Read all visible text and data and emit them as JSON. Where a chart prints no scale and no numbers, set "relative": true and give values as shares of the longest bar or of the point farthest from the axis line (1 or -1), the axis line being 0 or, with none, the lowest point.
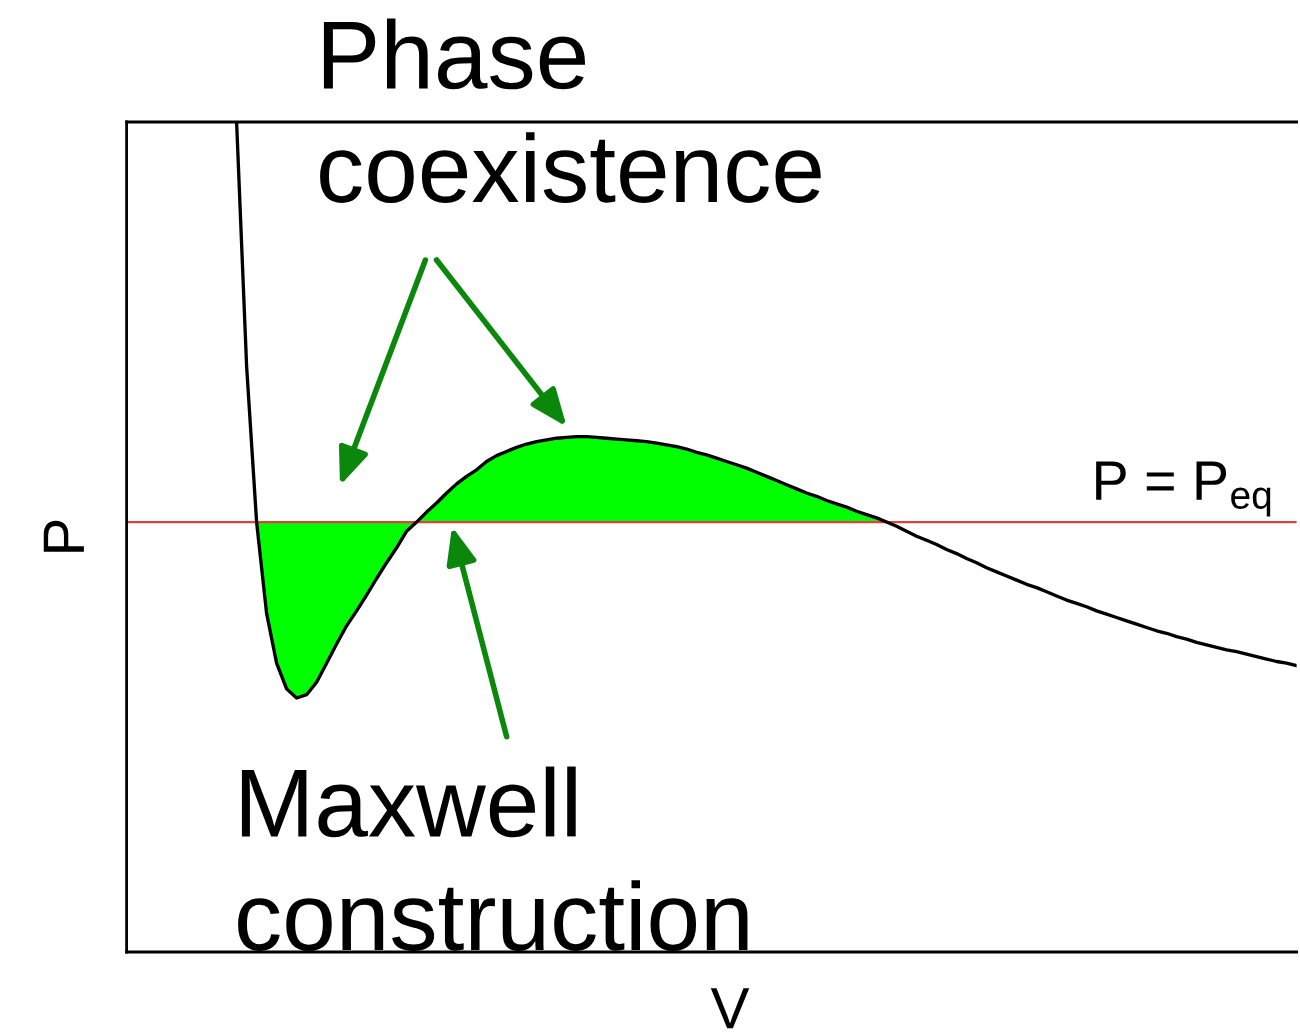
{
  "chart_data": {
    "type": "line",
    "xlabel": "V",
    "ylabel": "P",
    "relative": true,
    "categories": [
      null,
      null,
      null,
      null,
      null,
      null,
      null,
      null,
      null,
      null,
      null,
      null,
      null,
      null,
      null,
      null,
      null,
      null,
      null,
      null,
      null,
      null,
      null,
      null,
      null,
      null,
      null,
      null,
      null,
      null,
      null,
      null,
      null,
      null,
      null,
      null,
      null,
      null,
      null,
      null,
      null,
      null,
      null,
      null,
      null,
      null,
      null,
      null,
      null,
      null,
      null,
      null,
      null,
      null,
      null,
      null,
      null,
      null,
      null,
      null,
      null,
      null,
      null,
      null,
      null,
      null,
      null,
      null,
      null,
      null,
      null,
      null,
      null,
      null,
      null,
      null,
      null,
      null,
      null,
      null,
      null,
      null,
      null,
      null,
      null,
      null,
      null,
      null,
      null,
      null,
      null,
      null,
      null,
      null,
      null,
      null,
      null,
      null,
      null,
      null,
      null,
      null,
      null,
      null,
      null,
      null,
      null,
      null,
      null,
      null,
      null,
      null,
      null,
      null,
      null,
      null,
      null,
      null
    ],
    "series": [
      {
        "color": "#000000",
        "values": [
          null,
          null,
          null,
          null,
          null,
          null,
          null,
          null,
          null,
          null,
          null,
          1.0,
          0.706,
          0.518,
          0.408,
          0.348,
          0.317,
          0.306,
          0.31,
          0.325,
          0.348,
          0.371,
          0.393,
          0.411,
          0.43,
          0.45,
          0.469,
          0.487,
          0.507,
          0.518,
          0.53,
          0.541,
          0.553,
          0.564,
          0.573,
          0.581,
          0.591,
          0.598,
          0.603,
          0.608,
          0.612,
          0.615,
          0.617,
          0.619,
          0.62,
          0.621,
          0.621,
          0.62,
          0.619,
          0.618,
          0.617,
          0.616,
          0.615,
          0.613,
          0.611,
          0.609,
          0.606,
          0.602,
          0.599,
          0.595,
          0.591,
          0.587,
          0.583,
          0.578,
          0.573,
          0.568,
          0.563,
          0.558,
          0.553,
          0.549,
          0.544,
          0.54,
          0.536,
          0.531,
          0.527,
          0.523,
          0.518,
          0.513,
          0.507,
          0.501,
          0.496,
          0.491,
          0.485,
          0.48,
          0.474,
          0.469,
          0.463,
          0.458,
          0.453,
          0.448,
          0.443,
          0.439,
          0.434,
          0.429,
          0.424,
          0.42,
          0.416,
          0.411,
          0.407,
          0.403,
          0.399,
          0.395,
          0.391,
          0.387,
          0.384,
          0.38,
          0.377,
          0.373,
          0.37,
          0.367,
          0.364,
          0.362,
          0.359,
          0.356,
          0.353,
          0.35,
          0.348,
          0.345
        ]
      },
      {
        "type": "area",
        "color": "#00ff00",
        "values": [
          null,
          null,
          null,
          null,
          null,
          null,
          null,
          null,
          null,
          null,
          null,
          null,
          null,
          0.518,
          0.408,
          0.348,
          0.317,
          0.306,
          0.31,
          0.325,
          0.348,
          0.371,
          0.393,
          0.411,
          0.43,
          0.45,
          0.469,
          0.487,
          0.507,
          0.518,
          0.53,
          0.541,
          0.553,
          0.564,
          0.573,
          0.581,
          0.591,
          0.598,
          0.603,
          0.608,
          0.612,
          0.615,
          0.617,
          0.619,
          0.62,
          0.621,
          0.621,
          0.62,
          0.619,
          0.618,
          0.617,
          0.616,
          0.615,
          0.613,
          0.611,
          0.609,
          0.606,
          0.602,
          0.599,
          0.595,
          0.591,
          0.587,
          0.583,
          0.578,
          0.573,
          0.568,
          0.563,
          0.558,
          0.553,
          0.549,
          0.544,
          0.54,
          0.536,
          0.531,
          0.527,
          0.523,
          0.518,
          null,
          null,
          null,
          null,
          null,
          null,
          null,
          null,
          null,
          null,
          null,
          null,
          null,
          null,
          null,
          null,
          null,
          null,
          null,
          null,
          null,
          null,
          null,
          null,
          null,
          null,
          null,
          null,
          null,
          null,
          null,
          null,
          null,
          null,
          null,
          null,
          null,
          null,
          null,
          null,
          null
        ]
      }
    ],
    "ref_lines": [
      {
        "axis": "y",
        "value": 0.518,
        "label": "P = P$_{eq}$",
        "color": "#e04040"
      }
    ],
    "annotations": [
      "Phase\ncoexistence",
      "Maxwell\nconstruction"
    ]
  }
}
